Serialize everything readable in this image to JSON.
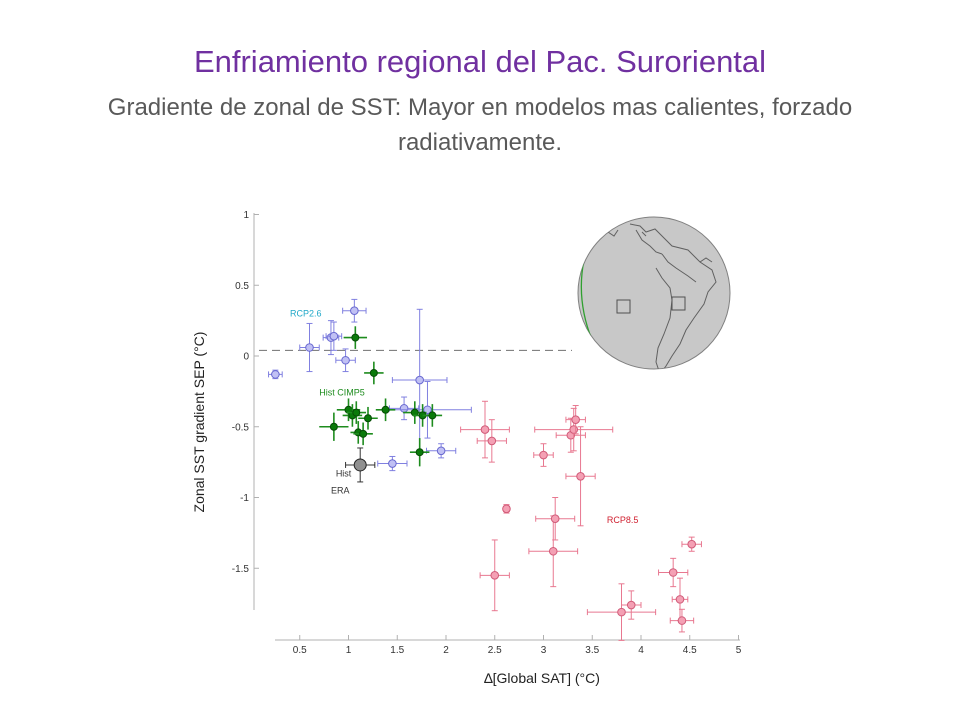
{
  "title": "Enfriamiento regional del Pac. Suroriental",
  "subtitle": "Gradiente de zonal de SST: Mayor en modelos mas calientes, forzado radiativamente.",
  "chart_data": {
    "type": "scatter",
    "xlabel": "∆[Global SAT]  (°C)",
    "ylabel": "Zonal SST gradient SEP  (°C)",
    "xlim": [
      0,
      5
    ],
    "ylim": [
      -1.8,
      1.05
    ],
    "x_ticks": [
      "0.5",
      "1",
      "1.5",
      "2",
      "2.5",
      "3",
      "3.5",
      "4",
      "4.5",
      "5"
    ],
    "y_ticks": [
      "1",
      "0.5",
      "0",
      "-0.5",
      "-1",
      "-1.5"
    ],
    "reference_line": {
      "y": 0.04,
      "style": "dashed"
    },
    "series": [
      {
        "name": "RCP2.6",
        "color": "#8080e0",
        "points": [
          {
            "x": 0.25,
            "y": -0.13,
            "xerr": 0.07,
            "yerr": 0.03
          },
          {
            "x": 0.6,
            "y": 0.06,
            "xerr": 0.1,
            "yerr": 0.17
          },
          {
            "x": 0.82,
            "y": 0.13,
            "xerr": 0.08,
            "yerr": 0.12
          },
          {
            "x": 0.85,
            "y": 0.14,
            "xerr": 0.08,
            "yerr": 0.1
          },
          {
            "x": 0.97,
            "y": -0.03,
            "xerr": 0.1,
            "yerr": 0.08
          },
          {
            "x": 1.06,
            "y": 0.32,
            "xerr": 0.12,
            "yerr": 0.08
          },
          {
            "x": 1.45,
            "y": -0.76,
            "xerr": 0.15,
            "yerr": 0.05
          },
          {
            "x": 1.57,
            "y": -0.37,
            "xerr": 0.15,
            "yerr": 0.08
          },
          {
            "x": 1.73,
            "y": -0.17,
            "xerr": 0.28,
            "yerr": 0.5
          },
          {
            "x": 1.81,
            "y": -0.38,
            "xerr": 0.45,
            "yerr": 0.2
          },
          {
            "x": 1.95,
            "y": -0.67,
            "xerr": 0.15,
            "yerr": 0.05
          }
        ]
      },
      {
        "name": "Hist CIMP5",
        "color": "#1e8c1e",
        "points": [
          {
            "x": 0.85,
            "y": -0.5,
            "xerr": 0.15,
            "yerr": 0.1
          },
          {
            "x": 1.0,
            "y": -0.38,
            "xerr": 0.12,
            "yerr": 0.08
          },
          {
            "x": 1.04,
            "y": -0.42,
            "xerr": 0.1,
            "yerr": 0.08
          },
          {
            "x": 1.07,
            "y": 0.13,
            "xerr": 0.12,
            "yerr": 0.08
          },
          {
            "x": 1.08,
            "y": -0.4,
            "xerr": 0.1,
            "yerr": 0.08
          },
          {
            "x": 1.1,
            "y": -0.54,
            "xerr": 0.08,
            "yerr": 0.08
          },
          {
            "x": 1.15,
            "y": -0.55,
            "xerr": 0.1,
            "yerr": 0.08
          },
          {
            "x": 1.2,
            "y": -0.44,
            "xerr": 0.1,
            "yerr": 0.08
          },
          {
            "x": 1.26,
            "y": -0.12,
            "xerr": 0.1,
            "yerr": 0.08
          },
          {
            "x": 1.38,
            "y": -0.38,
            "xerr": 0.1,
            "yerr": 0.08
          },
          {
            "x": 1.68,
            "y": -0.4,
            "xerr": 0.12,
            "yerr": 0.08
          },
          {
            "x": 1.73,
            "y": -0.68,
            "xerr": 0.1,
            "yerr": 0.1
          },
          {
            "x": 1.76,
            "y": -0.42,
            "xerr": 0.1,
            "yerr": 0.08
          },
          {
            "x": 1.86,
            "y": -0.42,
            "xerr": 0.1,
            "yerr": 0.08
          }
        ]
      },
      {
        "name": "RCP8.5",
        "color": "#e87890",
        "points": [
          {
            "x": 2.4,
            "y": -0.52,
            "xerr": 0.25,
            "yerr": 0.2
          },
          {
            "x": 2.47,
            "y": -0.6,
            "xerr": 0.15,
            "yerr": 0.15
          },
          {
            "x": 2.5,
            "y": -1.55,
            "xerr": 0.15,
            "yerr": 0.25
          },
          {
            "x": 2.62,
            "y": -1.08,
            "xerr": 0.03,
            "yerr": 0.03
          },
          {
            "x": 3.0,
            "y": -0.7,
            "xerr": 0.1,
            "yerr": 0.08
          },
          {
            "x": 3.1,
            "y": -1.38,
            "xerr": 0.25,
            "yerr": 0.25
          },
          {
            "x": 3.12,
            "y": -1.15,
            "xerr": 0.2,
            "yerr": 0.15
          },
          {
            "x": 3.28,
            "y": -0.56,
            "xerr": 0.15,
            "yerr": 0.12
          },
          {
            "x": 3.31,
            "y": -0.52,
            "xerr": 0.4,
            "yerr": 0.15
          },
          {
            "x": 3.33,
            "y": -0.45,
            "xerr": 0.1,
            "yerr": 0.1
          },
          {
            "x": 3.38,
            "y": -0.85,
            "xerr": 0.15,
            "yerr": 0.35
          },
          {
            "x": 3.8,
            "y": -1.81,
            "xerr": 0.35,
            "yerr": 0.2
          },
          {
            "x": 3.9,
            "y": -1.76,
            "xerr": 0.1,
            "yerr": 0.1
          },
          {
            "x": 4.33,
            "y": -1.53,
            "xerr": 0.15,
            "yerr": 0.1
          },
          {
            "x": 4.4,
            "y": -1.72,
            "xerr": 0.08,
            "yerr": 0.15
          },
          {
            "x": 4.42,
            "y": -1.87,
            "xerr": 0.12,
            "yerr": 0.08
          },
          {
            "x": 4.52,
            "y": -1.33,
            "xerr": 0.1,
            "yerr": 0.05
          }
        ]
      },
      {
        "name": "Hist ERA",
        "color": "#909090",
        "points": [
          {
            "x": 1.12,
            "y": -0.77,
            "xerr": 0.15,
            "yerr": 0.12
          }
        ]
      }
    ],
    "annotations": [
      {
        "text": "RCP2.6",
        "x": 0.4,
        "y": 0.28,
        "color": "#20a8c8"
      },
      {
        "text": "Hist CIMP5",
        "x": 0.7,
        "y": -0.28,
        "color": "#1e8c1e"
      },
      {
        "text": "Hist",
        "x": 0.87,
        "y": -0.85,
        "color": "#333333"
      },
      {
        "text": "ERA",
        "x": 0.82,
        "y": -0.97,
        "color": "#333333"
      },
      {
        "text": "RCP8.5",
        "x": 3.65,
        "y": -1.18,
        "color": "#d02030"
      }
    ],
    "inset": "globe-map-icon"
  }
}
